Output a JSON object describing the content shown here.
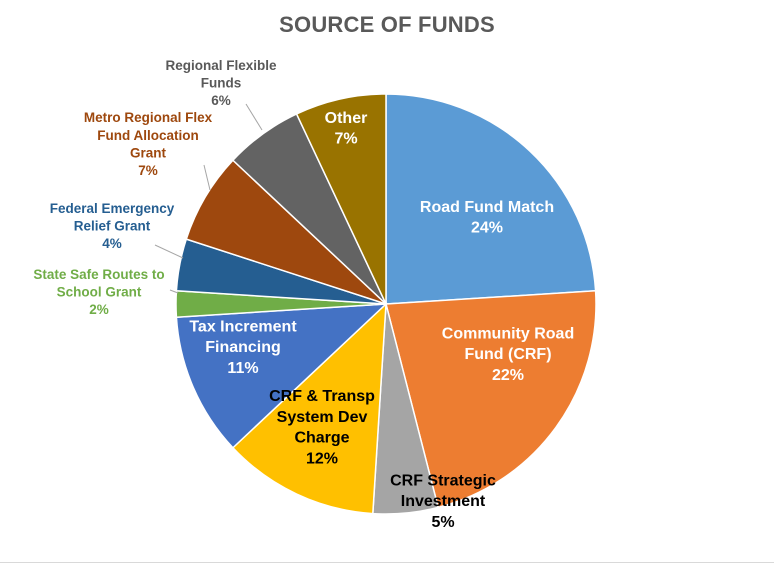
{
  "chart_data": {
    "type": "pie",
    "title": "SOURCE OF FUNDS",
    "slices": [
      {
        "label": "Road Fund Match",
        "percent_label": "24%",
        "value": 24,
        "color": "#5b9bd5",
        "label_lines": [
          "Road Fund Match"
        ]
      },
      {
        "label": "Community Road Fund (CRF)",
        "percent_label": "22%",
        "value": 22,
        "color": "#ed7d31",
        "label_lines": [
          "Community Road",
          "Fund (CRF)"
        ]
      },
      {
        "label": "CRF Strategic Investment",
        "percent_label": "5%",
        "value": 5,
        "color": "#a5a5a5",
        "label_lines": [
          "CRF Strategic",
          "Investment"
        ]
      },
      {
        "label": "CRF & Transp System Dev Charge",
        "percent_label": "12%",
        "value": 12,
        "color": "#ffc000",
        "label_lines": [
          "CRF & Transp",
          "System Dev",
          "Charge"
        ]
      },
      {
        "label": "Tax Increment Financing",
        "percent_label": "11%",
        "value": 11,
        "color": "#4472c4",
        "label_lines": [
          "Tax Increment",
          "Financing"
        ]
      },
      {
        "label": "State Safe Routes to School Grant",
        "percent_label": "2%",
        "value": 2,
        "color": "#70ad47",
        "label_lines": [
          "State Safe Routes to",
          "School Grant"
        ]
      },
      {
        "label": "Federal Emergency Relief Grant",
        "percent_label": "4%",
        "value": 4,
        "color": "#255e91",
        "label_lines": [
          "Federal Emergency",
          "Relief Grant"
        ]
      },
      {
        "label": "Metro Regional Flex Fund Allocation Grant",
        "percent_label": "7%",
        "value": 7,
        "color": "#9e480e",
        "label_lines": [
          "Metro Regional Flex",
          "Fund Allocation",
          "Grant"
        ]
      },
      {
        "label": "Regional Flexible Funds",
        "percent_label": "6%",
        "value": 6,
        "color": "#636363",
        "label_lines": [
          "Regional Flexible",
          "Funds"
        ]
      },
      {
        "label": "Other",
        "percent_label": "7%",
        "value": 7,
        "color": "#997300",
        "label_lines": [
          "Other"
        ]
      }
    ]
  }
}
